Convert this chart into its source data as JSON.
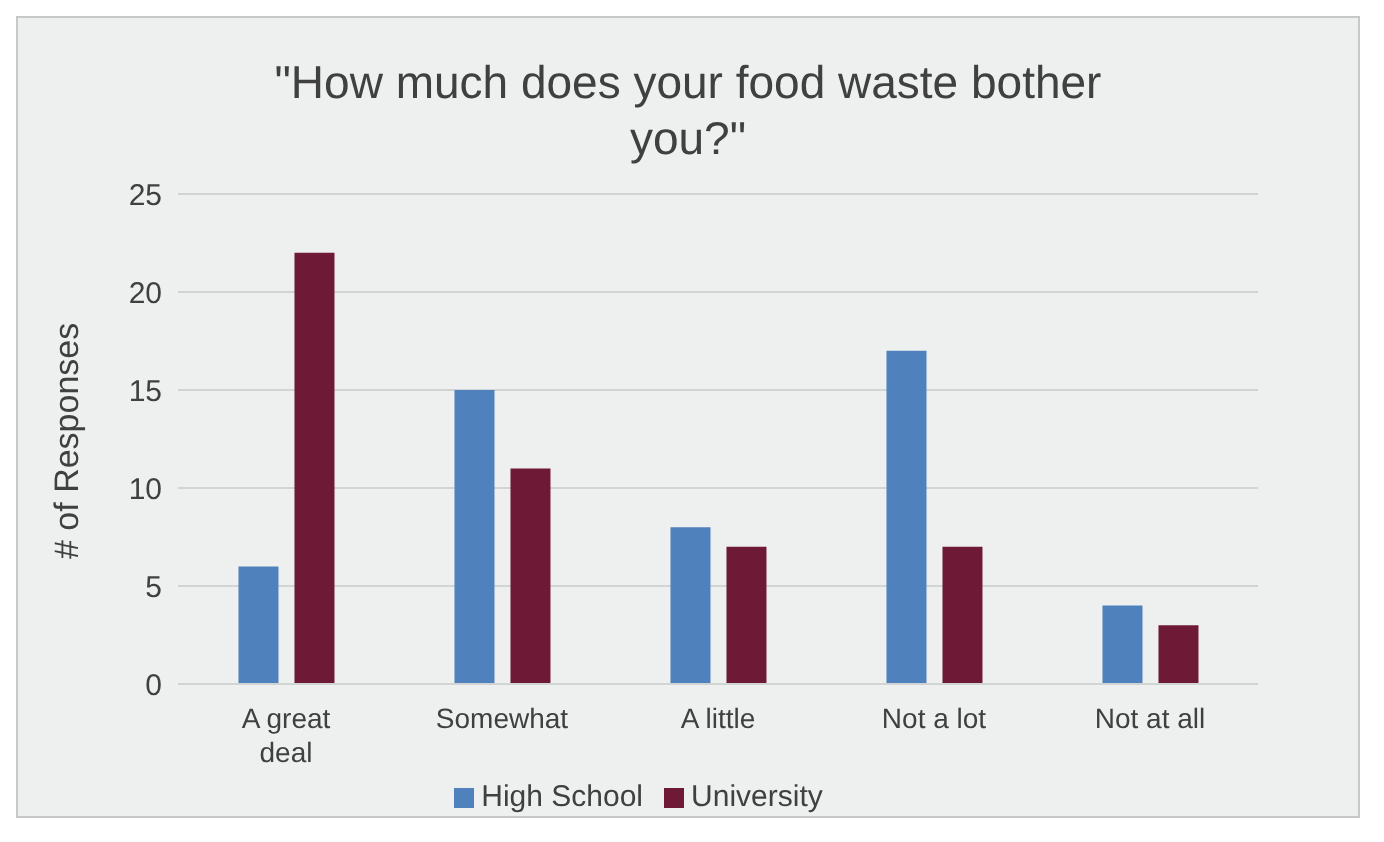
{
  "chart_data": {
    "type": "bar",
    "title": "\"How much does your food waste bother you?\"",
    "ylabel": "# of Responses",
    "categories": [
      "A great deal",
      "Somewhat",
      "A little",
      "Not a lot",
      "Not at all"
    ],
    "series": [
      {
        "name": "High School",
        "color": "#4f81bd",
        "values": [
          6,
          15,
          8,
          17,
          4
        ]
      },
      {
        "name": "University",
        "color": "#6e1a37",
        "values": [
          22,
          11,
          7,
          7,
          3
        ]
      }
    ],
    "ylim": [
      0,
      25
    ],
    "yticks": [
      0,
      5,
      10,
      15,
      20,
      25
    ],
    "grid": "y",
    "legend": "bottom"
  }
}
